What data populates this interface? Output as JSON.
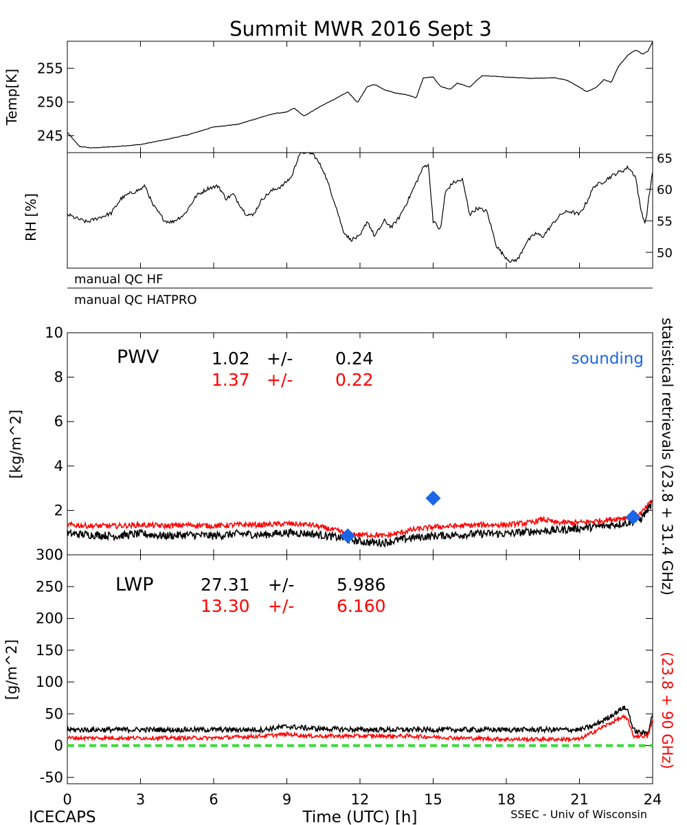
{
  "title": "Summit MWR 2016 Sept  3",
  "footer": {
    "left": "ICECAPS",
    "right": "SSEC - Univ of Wisconsin"
  },
  "colors": {
    "black": "#000000",
    "red": "#ff0000",
    "blue": "#1a66e6",
    "zero_line": "#33dd33"
  },
  "chart_data": [
    {
      "type": "line",
      "panel": "temperature",
      "ylabel": "Temp[K]",
      "y_axis_side": "left",
      "ylim": [
        242.5,
        259
      ],
      "yticks": [
        245,
        250,
        255
      ],
      "xlim": [
        0,
        24
      ],
      "series": [
        {
          "color": "#000000",
          "x": [
            0,
            0.5,
            1,
            2,
            3,
            4,
            5,
            6,
            7,
            8,
            8.5,
            9,
            9.3,
            9.7,
            10.5,
            11,
            11.5,
            11.9,
            12.3,
            12.6,
            13,
            13.5,
            14,
            14.3,
            14.6,
            15,
            15.3,
            15.7,
            16,
            16.5,
            17,
            17.5,
            18,
            19,
            20,
            20.5,
            21,
            21.3,
            21.7,
            22,
            22.3,
            22.6,
            23,
            23.3,
            23.6,
            23.8,
            24
          ],
          "y": [
            245.5,
            243.4,
            243.2,
            243.4,
            243.7,
            244.4,
            245.2,
            246.3,
            246.7,
            247.8,
            248.3,
            248.5,
            249.1,
            247.9,
            249.6,
            250.5,
            251.5,
            249.9,
            252.3,
            252.6,
            251.8,
            251.3,
            251.0,
            250.6,
            253.6,
            253.7,
            252.3,
            251.9,
            252.8,
            252.2,
            253.9,
            253.8,
            253.7,
            253.5,
            253.6,
            253.2,
            252.2,
            251.5,
            252.2,
            253.3,
            252.9,
            255.3,
            257.0,
            257.7,
            257.1,
            257.5,
            258.9
          ]
        }
      ]
    },
    {
      "type": "line",
      "panel": "relative-humidity",
      "ylabel": "RH [%]",
      "y_axis_side": "right",
      "ylim": [
        47.5,
        65.8
      ],
      "yticks": [
        50,
        55,
        60,
        65
      ],
      "xlim": [
        0,
        24
      ],
      "series": [
        {
          "color": "#000000",
          "x": [
            0,
            0.3,
            0.8,
            1.3,
            1.8,
            2.2,
            2.5,
            3,
            3.2,
            3.5,
            4,
            4.3,
            4.8,
            5.3,
            5.8,
            6.2,
            6.5,
            6.8,
            7.3,
            7.6,
            8,
            8.4,
            8.8,
            9.2,
            9.5,
            9.8,
            10.1,
            10.5,
            11,
            11.3,
            11.6,
            12,
            12.3,
            12.6,
            13,
            13.3,
            13.6,
            14,
            14.3,
            14.6,
            14.8,
            15,
            15.3,
            15.5,
            15.8,
            16.2,
            16.5,
            16.8,
            17.2,
            17.6,
            17.9,
            18.2,
            18.5,
            18.8,
            19.2,
            19.5,
            20,
            20.3,
            20.6,
            21,
            21.3,
            21.6,
            21.9,
            22.2,
            22.5,
            22.8,
            23,
            23.3,
            23.5,
            23.7,
            24
          ],
          "y": [
            56.0,
            55.5,
            54.8,
            55.5,
            56.2,
            58.5,
            59.2,
            60.0,
            60.5,
            57.5,
            55.0,
            54.8,
            56.0,
            59.0,
            60.2,
            60.5,
            58.5,
            59.2,
            56.2,
            55.8,
            58.5,
            59.8,
            60.5,
            62.0,
            65.5,
            66.0,
            65.5,
            63.0,
            57.5,
            53.5,
            52.0,
            52.5,
            55.0,
            52.5,
            55.0,
            54.0,
            55.5,
            58.5,
            61.0,
            63.5,
            64.0,
            55.0,
            53.5,
            59.5,
            61.0,
            61.5,
            56.0,
            57.0,
            56.5,
            51.0,
            49.5,
            48.5,
            49.0,
            51.5,
            53.0,
            52.5,
            55.0,
            56.2,
            56.5,
            56.0,
            58.0,
            60.5,
            61.0,
            61.8,
            62.5,
            63.0,
            63.5,
            62.0,
            57.0,
            54.5,
            63.0
          ]
        }
      ]
    },
    {
      "type": "line",
      "panel": "pwv",
      "ylabel": "[kg/m^2]",
      "ylim": [
        0,
        10
      ],
      "yticks": [
        0,
        2,
        4,
        6,
        8,
        10
      ],
      "xlim": [
        0,
        24
      ],
      "panel_label": "PWV",
      "stats": [
        {
          "color": "#000000",
          "value": "1.02",
          "pm": "+/-",
          "err": "0.24"
        },
        {
          "color": "#ff0000",
          "value": "1.37",
          "pm": "+/-",
          "err": "0.22"
        }
      ],
      "legend": {
        "label": "sounding",
        "color": "#1a66e6",
        "placement": "top-right"
      },
      "side_label_black": "statistical retrievals (23.8 + 31.4 GHz)",
      "series": [
        {
          "color": "#000000",
          "x": [
            0,
            1,
            2,
            3,
            4,
            5,
            6,
            7,
            8,
            9,
            10,
            11,
            11.5,
            12,
            12.5,
            13,
            13.5,
            14,
            15,
            16,
            17,
            18,
            19,
            20,
            21,
            22,
            23,
            23.5,
            24
          ],
          "y": [
            0.95,
            0.9,
            0.85,
            0.95,
            0.85,
            0.9,
            0.85,
            0.95,
            0.9,
            1.0,
            0.95,
            0.8,
            0.7,
            0.6,
            0.55,
            0.55,
            0.65,
            0.75,
            0.85,
            0.9,
            0.95,
            0.95,
            1.05,
            1.1,
            1.2,
            1.3,
            1.45,
            1.6,
            2.35
          ],
          "noise": 0.18
        },
        {
          "color": "#ff0000",
          "x": [
            0,
            1,
            2,
            3,
            4,
            5,
            6,
            7,
            8,
            9,
            10,
            11,
            11.5,
            12,
            12.5,
            13,
            13.5,
            14,
            15,
            16,
            17,
            18,
            19,
            19.5,
            20,
            21,
            22,
            23,
            23.5,
            24
          ],
          "y": [
            1.35,
            1.3,
            1.3,
            1.35,
            1.3,
            1.35,
            1.3,
            1.35,
            1.35,
            1.4,
            1.35,
            1.1,
            0.95,
            0.9,
            0.9,
            0.85,
            0.95,
            1.1,
            1.25,
            1.3,
            1.35,
            1.35,
            1.45,
            1.6,
            1.45,
            1.45,
            1.55,
            1.7,
            1.85,
            2.45
          ],
          "noise": 0.12
        },
        {
          "name": "sounding",
          "color": "#1a66e6",
          "marker": "diamond",
          "x": [
            11.5,
            15.0,
            23.2
          ],
          "y": [
            0.85,
            2.55,
            1.7
          ]
        }
      ]
    },
    {
      "type": "line",
      "panel": "lwp",
      "ylabel": "[g/m^2]",
      "ylim": [
        -60,
        300
      ],
      "yticks": [
        -50,
        0,
        50,
        100,
        150,
        200,
        250,
        300
      ],
      "xlim": [
        0,
        24
      ],
      "xticks": [
        0,
        3,
        6,
        9,
        12,
        15,
        18,
        21,
        24
      ],
      "xlabel": "Time (UTC) [h]",
      "panel_label": "LWP",
      "stats": [
        {
          "color": "#000000",
          "value": "27.31",
          "pm": "+/-",
          "err": "5.986"
        },
        {
          "color": "#ff0000",
          "value": "13.30",
          "pm": "+/-",
          "err": "6.160"
        }
      ],
      "side_label_red": "(23.8 + 90 GHz)",
      "reference_line": {
        "y": 0,
        "color": "#33dd33",
        "style": "dashed"
      },
      "series": [
        {
          "color": "#000000",
          "x": [
            0,
            2,
            4,
            6,
            8,
            9,
            10,
            12,
            14,
            16,
            18,
            20,
            21,
            21.5,
            22,
            22.5,
            22.8,
            23.0,
            23.2,
            23.5,
            23.8,
            24
          ],
          "y": [
            25,
            25,
            25,
            25,
            25,
            30,
            27,
            25,
            25,
            25,
            25,
            25,
            25,
            30,
            40,
            52,
            60,
            55,
            25,
            20,
            20,
            50
          ],
          "noise": 4
        },
        {
          "color": "#ff0000",
          "x": [
            0,
            2,
            4,
            6,
            8,
            9,
            10,
            12,
            14,
            16,
            18,
            20,
            21,
            21.5,
            22,
            22.5,
            22.8,
            23.0,
            23.2,
            23.5,
            23.8,
            24
          ],
          "y": [
            12,
            12,
            12,
            12,
            15,
            18,
            15,
            15,
            15,
            12,
            10,
            10,
            10,
            20,
            30,
            40,
            45,
            40,
            15,
            15,
            15,
            40
          ],
          "noise": 3
        }
      ]
    }
  ],
  "qc_bars": [
    {
      "label": "manual QC HF"
    },
    {
      "label": "manual QC HATPRO"
    }
  ]
}
